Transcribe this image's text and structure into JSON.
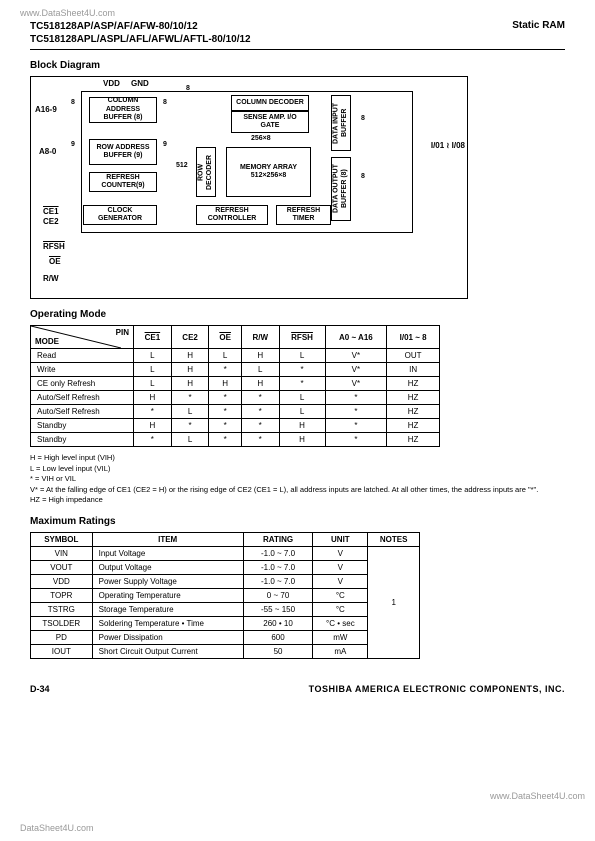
{
  "watermarks": {
    "top": "www.DataSheet4U.com",
    "right": "www.DataSheet4U.com",
    "bottom": "DataSheet4U.com"
  },
  "header": {
    "part1": "TC518128AP/ASP/AF/AFW-80/10/12",
    "part2": "TC518128APL/ASPL/AFL/AFWL/AFTL-80/10/12",
    "product": "Static RAM"
  },
  "sections": {
    "block_diagram": "Block Diagram",
    "operating_mode": "Operating Mode",
    "maximum_ratings": "Maximum Ratings"
  },
  "block_diagram": {
    "vdd": "VDD",
    "gnd": "GND",
    "col_addr_buf": "COLUMN\nADDRESS\nBUFFER (8)",
    "row_addr_buf": "ROW\nADDRESS\nBUFFER (9)",
    "refresh_counter": "REFRESH\nCOUNTER(9)",
    "clock_gen": "CLOCK\nGENERATOR",
    "col_decoder": "COLUMN\nDECODER",
    "sense_amp": "SENSE AMP.\nI/O GATE",
    "row_decoder": "ROW DECODER",
    "memory_array": "MEMORY\nARRAY\n512×256×8",
    "refresh_ctrl": "REFRESH\nCONTROLLER",
    "refresh_timer": "REFRESH\nTIMER",
    "data_in_buf": "DATA INPUT\nBUFFER",
    "data_out_buf": "DATA OUTPUT\nBUFFER (8)",
    "a16_9": "A16-9",
    "a8_0": "A8-0",
    "ce1": "CE1",
    "ce2": "CE2",
    "rfsh": "RFSH",
    "oe": "OE",
    "rw": "R/W",
    "io": "I/01\n≀\nI/08",
    "n8": "8",
    "n9": "9",
    "n512": "512",
    "n256x8": "256×8"
  },
  "operating_mode": {
    "headers": [
      "PIN",
      "CE1",
      "CE2",
      "OE",
      "R/W",
      "RFSH",
      "A0 ~ A16",
      "I/01 ~ 8"
    ],
    "mode_label": "MODE",
    "rows": [
      [
        "Read",
        "L",
        "H",
        "L",
        "H",
        "L",
        "V*",
        "OUT"
      ],
      [
        "Write",
        "L",
        "H",
        "*",
        "L",
        "*",
        "V*",
        "IN"
      ],
      [
        "CE only Refresh",
        "L",
        "H",
        "H",
        "H",
        "*",
        "V*",
        "HZ"
      ],
      [
        "Auto/Self Refresh",
        "H",
        "*",
        "*",
        "*",
        "L",
        "*",
        "HZ"
      ],
      [
        "Auto/Self Refresh",
        "*",
        "L",
        "*",
        "*",
        "L",
        "*",
        "HZ"
      ],
      [
        "Standby",
        "H",
        "*",
        "*",
        "*",
        "H",
        "*",
        "HZ"
      ],
      [
        "Standby",
        "*",
        "L",
        "*",
        "*",
        "H",
        "*",
        "HZ"
      ]
    ]
  },
  "legend": {
    "h": "H = High level input (VIH)",
    "l": "L = Low level input (VIL)",
    "star": "* = VIH or VIL",
    "vstar": "V* = At the falling edge of CE1 (CE2 = H) or the rising edge of CE2 (CE1 = L), all address inputs are latched. At all other times, the address inputs are \"*\".",
    "hz": "HZ = High impedance"
  },
  "max_ratings": {
    "headers": [
      "SYMBOL",
      "ITEM",
      "RATING",
      "UNIT",
      "NOTES"
    ],
    "rows": [
      [
        "VIN",
        "Input Voltage",
        "-1.0 ~ 7.0",
        "V"
      ],
      [
        "VOUT",
        "Output Voltage",
        "-1.0 ~ 7.0",
        "V"
      ],
      [
        "VDD",
        "Power Supply Voltage",
        "-1.0 ~ 7.0",
        "V"
      ],
      [
        "TOPR",
        "Operating Temperature",
        "0 ~ 70",
        "°C"
      ],
      [
        "TSTRG",
        "Storage Temperature",
        "-55 ~ 150",
        "°C"
      ],
      [
        "TSOLDER",
        "Soldering Temperature • Time",
        "260 • 10",
        "°C • sec"
      ],
      [
        "PD",
        "Power Dissipation",
        "600",
        "mW"
      ],
      [
        "IOUT",
        "Short Circuit Output Current",
        "50",
        "mA"
      ]
    ],
    "note": "1"
  },
  "footer": {
    "page": "D-34",
    "company": "TOSHIBA AMERICA ELECTRONIC COMPONENTS, INC."
  }
}
